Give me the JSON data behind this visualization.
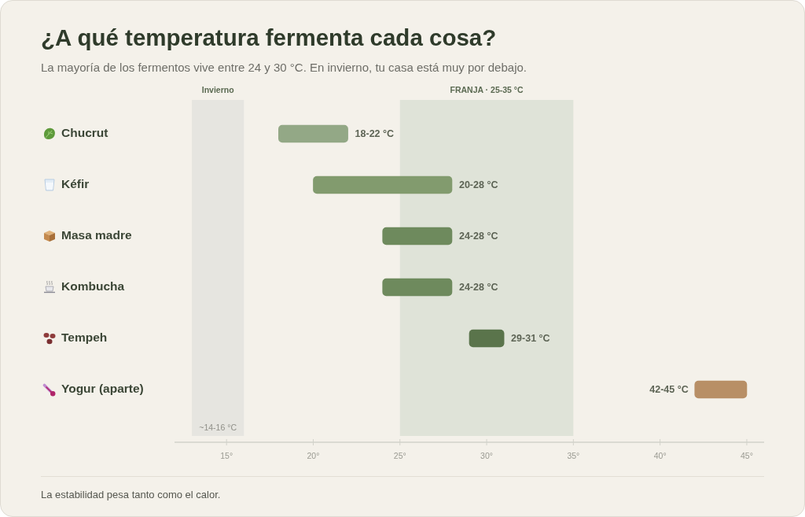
{
  "chart_data": {
    "type": "bar",
    "orientation": "horizontal",
    "title": "¿A qué temperatura fermenta cada cosa?",
    "subtitle": "La mayoría de los fermentos vive entre 24 y 30 °C. En invierno, tu casa está muy por debajo.",
    "categories": [
      "Chucrut",
      "Kéfir",
      "Masa madre",
      "Kombucha",
      "Tempeh",
      "Yogur (aparte)"
    ],
    "base": [
      18,
      20,
      24,
      24,
      29,
      42
    ],
    "values": [
      4,
      8,
      4,
      4,
      2,
      3
    ],
    "colors": [
      "#93a886",
      "#829b6e",
      "#6e8a5d",
      "#6e8a5d",
      "#5a744b",
      "#b88f66"
    ],
    "value_labels": [
      "18-22 °C",
      "20-28 °C",
      "24-28 °C",
      "24-28 °C",
      "29-31 °C",
      "42-45 °C"
    ],
    "xlim": [
      12,
      46
    ],
    "xticks": [
      {
        "value": 15,
        "label": "15°"
      },
      {
        "value": 20,
        "label": "20°"
      },
      {
        "value": 25,
        "label": "25°"
      },
      {
        "value": 30,
        "label": "30°"
      },
      {
        "value": 35,
        "label": "35°"
      },
      {
        "value": 40,
        "label": "40°"
      },
      {
        "value": 45,
        "label": "45°"
      }
    ],
    "bands": [
      {
        "axis": "x",
        "from": 13,
        "to": 16,
        "label": "Invierno",
        "color": "#e6e5e0"
      },
      {
        "axis": "x",
        "from": 25,
        "to": 35,
        "label": "FRANJA · 25-35 °C",
        "color": "#dfe3d8"
      }
    ],
    "annotations": [
      "~14-16 °C",
      "La estabilidad pesa tanto como el calor."
    ]
  }
}
